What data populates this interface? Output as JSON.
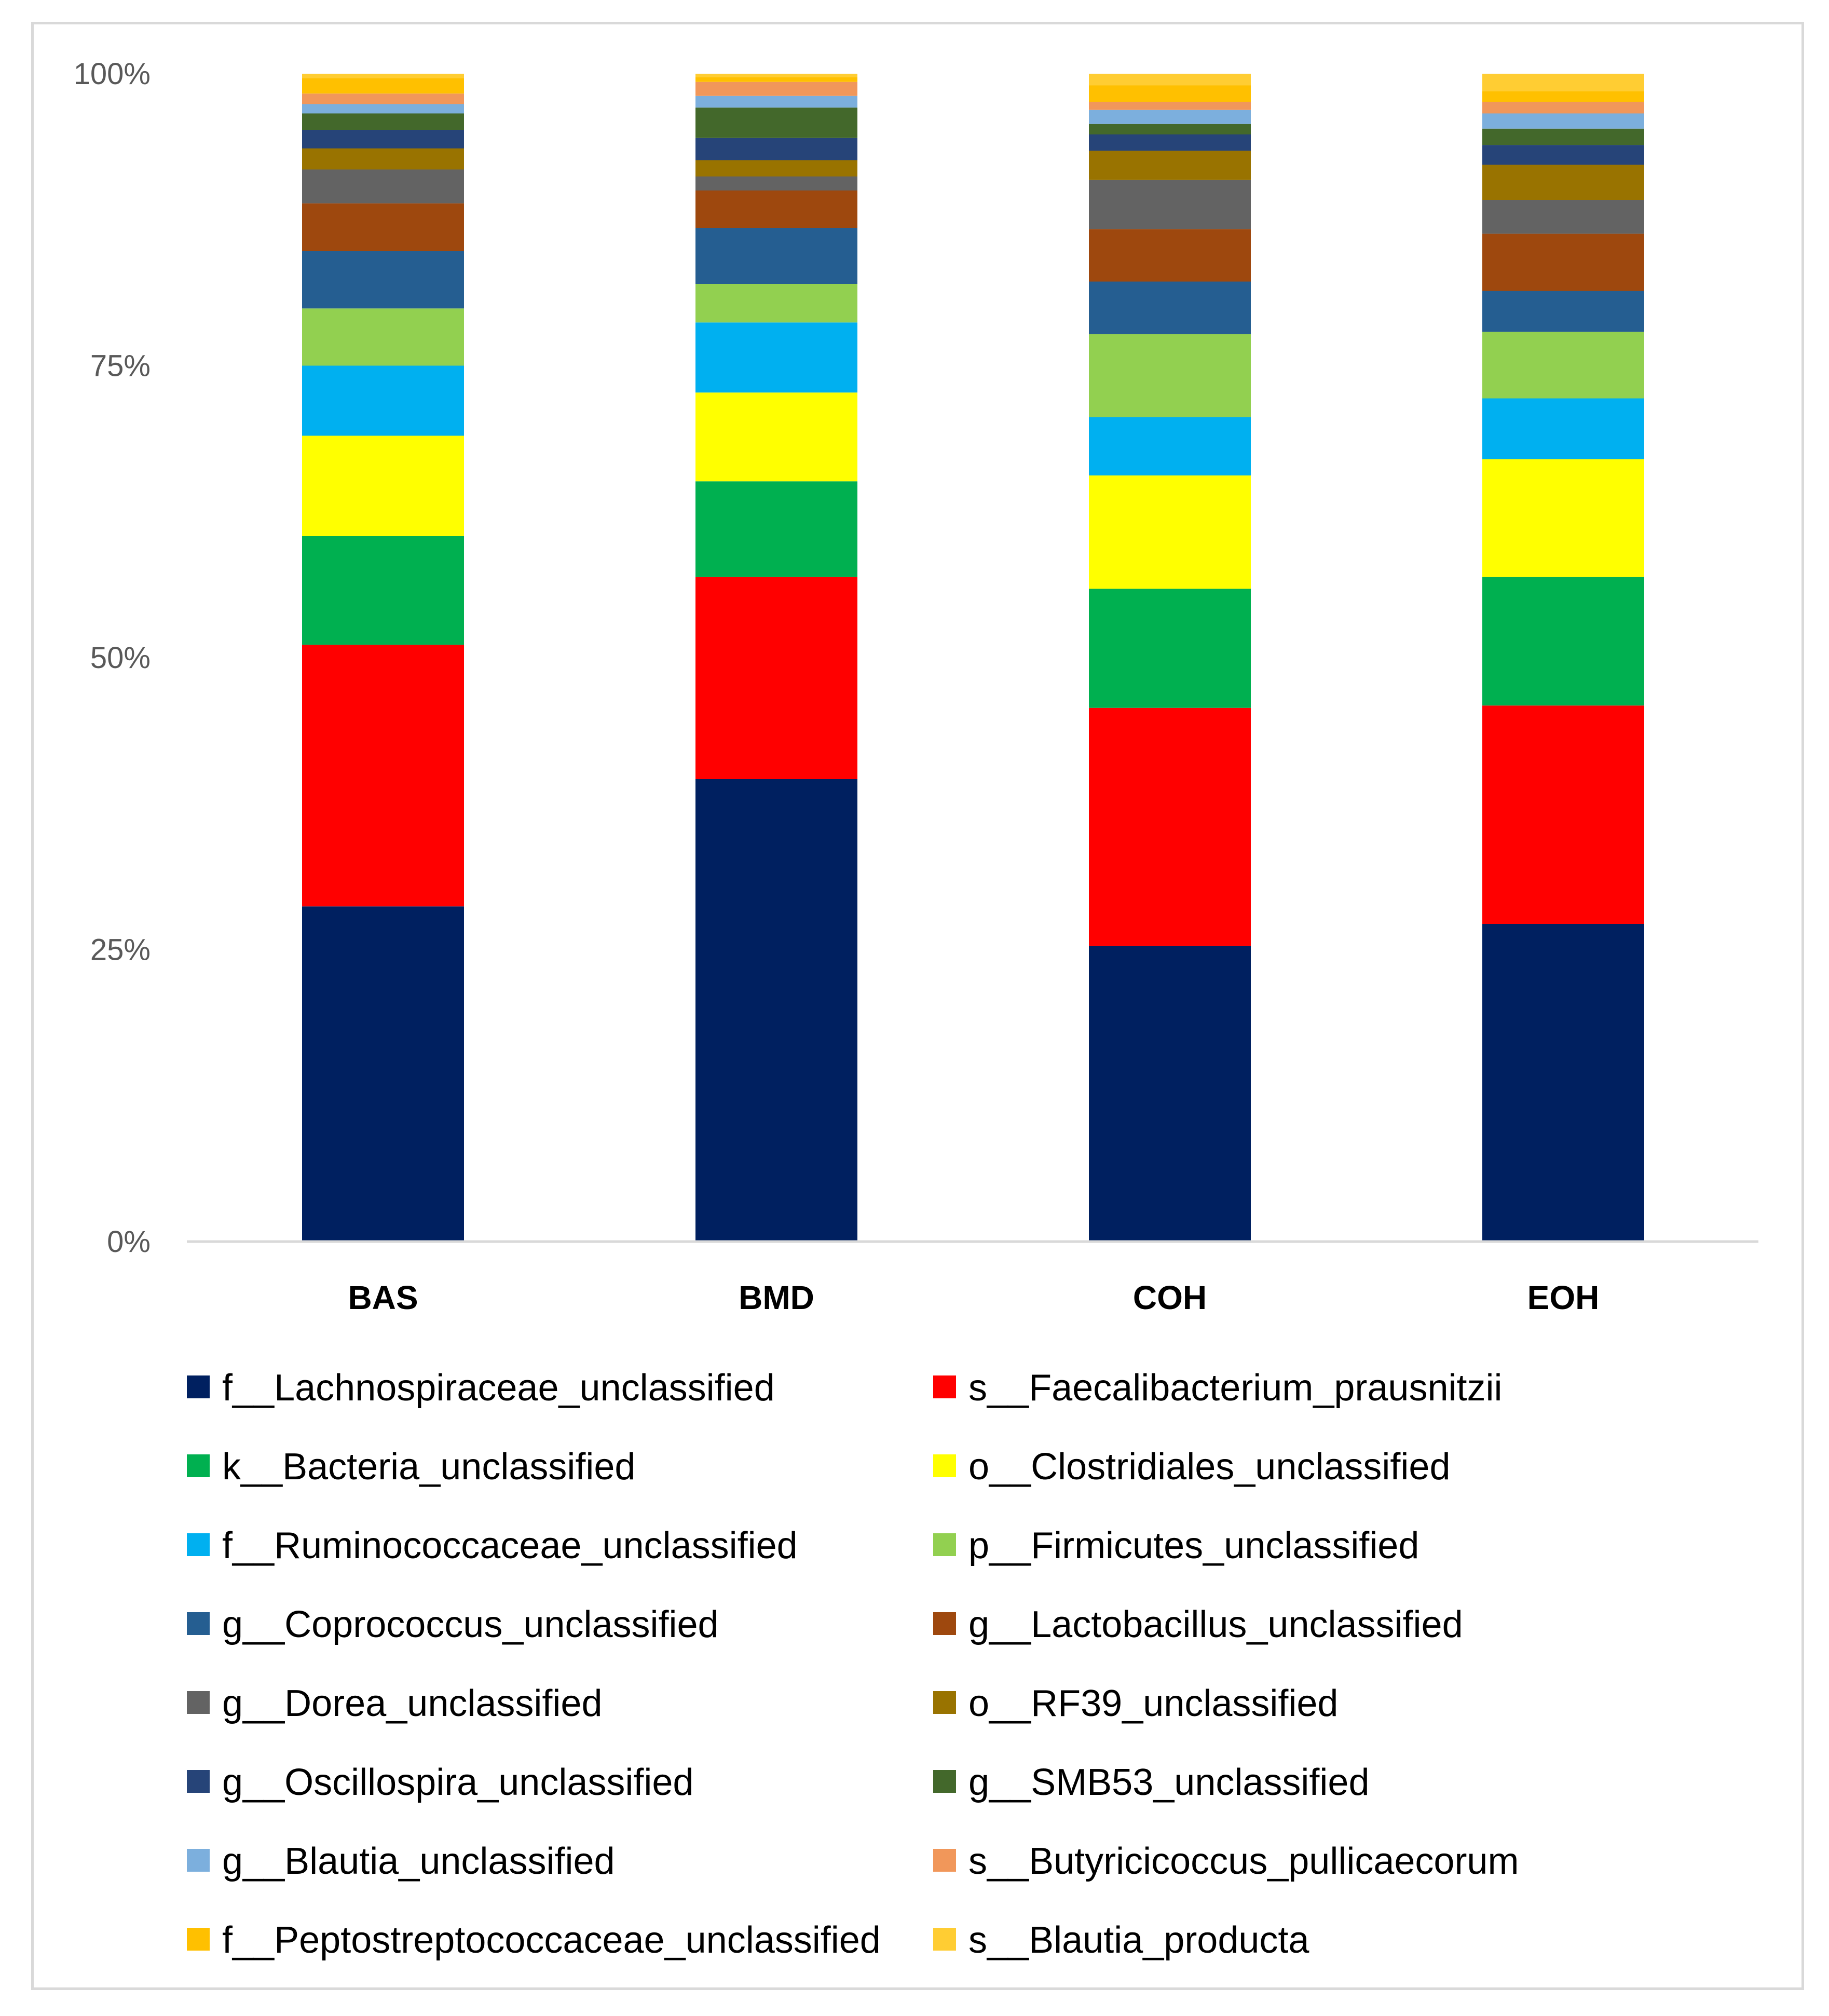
{
  "chart_data": {
    "type": "bar",
    "stacked": true,
    "percent_stacked": true,
    "title": "",
    "xlabel": "",
    "ylabel": "",
    "ylim": [
      0,
      100
    ],
    "yticks": [
      "0%",
      "25%",
      "50%",
      "75%",
      "100%"
    ],
    "ytick_values": [
      0,
      25,
      50,
      75,
      100
    ],
    "grid": false,
    "legend_position": "bottom",
    "categories": [
      "BAS",
      "BMD",
      "COH",
      "EOH"
    ],
    "series": [
      {
        "name": "f__Lachnospiraceae_unclassified",
        "color": "#002060",
        "values": [
          28.7,
          39.6,
          25.3,
          27.2
        ]
      },
      {
        "name": "s__Faecalibacterium_prausnitzii",
        "color": "#FF0000",
        "values": [
          22.4,
          17.3,
          20.4,
          18.7
        ]
      },
      {
        "name": "k__Bacteria_unclassified",
        "color": "#00B050",
        "values": [
          9.3,
          8.2,
          10.2,
          11.0
        ]
      },
      {
        "name": "o__Clostridiales_unclassified",
        "color": "#FFFF00",
        "values": [
          8.6,
          7.6,
          9.7,
          10.1
        ]
      },
      {
        "name": "f__Ruminococcaceae_unclassified",
        "color": "#00B0F0",
        "values": [
          6.0,
          6.0,
          5.0,
          5.2
        ]
      },
      {
        "name": "p__Firmicutes_unclassified",
        "color": "#92D050",
        "values": [
          4.9,
          3.3,
          7.1,
          5.7
        ]
      },
      {
        "name": "g__Coprococcus_unclassified",
        "color": "#255E91",
        "values": [
          4.9,
          4.8,
          4.5,
          3.5
        ]
      },
      {
        "name": "g__Lactobacillus_unclassified",
        "color": "#9E480E",
        "values": [
          4.1,
          3.2,
          4.5,
          4.9
        ]
      },
      {
        "name": "g__Dorea_unclassified",
        "color": "#636363",
        "values": [
          2.9,
          1.2,
          4.2,
          2.9
        ]
      },
      {
        "name": "o__RF39_unclassified",
        "color": "#997300",
        "values": [
          1.8,
          1.4,
          2.5,
          3.0
        ]
      },
      {
        "name": "g__Oscillospira_unclassified",
        "color": "#264478",
        "values": [
          1.6,
          1.9,
          1.4,
          1.7
        ]
      },
      {
        "name": "g__SMB53_unclassified",
        "color": "#43682B",
        "values": [
          1.4,
          2.6,
          0.9,
          1.4
        ]
      },
      {
        "name": "g__Blautia_unclassified",
        "color": "#7CAFDD",
        "values": [
          0.8,
          1.0,
          1.2,
          1.3
        ]
      },
      {
        "name": "s__Butyricicoccus_pullicaecorum",
        "color": "#F1975A",
        "values": [
          0.9,
          1.2,
          0.7,
          1.0
        ]
      },
      {
        "name": "f__Peptostreptococcaceae_unclassified",
        "color": "#FFC000",
        "values": [
          1.3,
          0.4,
          1.4,
          0.9
        ]
      },
      {
        "name": "s__Blautia_producta",
        "color": "#FFCD33",
        "values": [
          0.4,
          0.3,
          1.0,
          1.5
        ]
      }
    ]
  }
}
